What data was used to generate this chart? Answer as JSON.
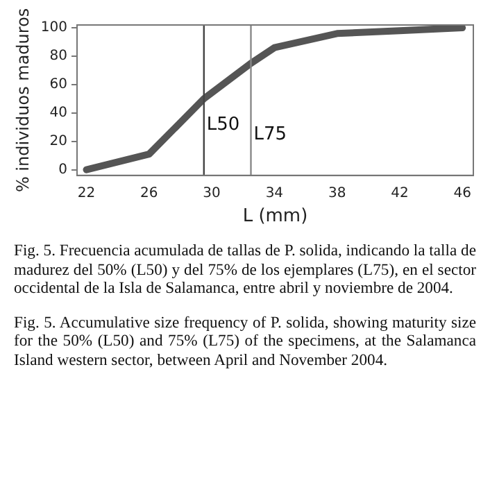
{
  "chart_data": {
    "type": "line",
    "xlabel": "L (mm)",
    "ylabel": "% individuos maduros",
    "x": [
      22,
      26,
      29.5,
      32.5,
      34,
      38,
      42,
      46
    ],
    "series": [
      {
        "color": "#555555",
        "values": [
          0,
          11,
          50,
          75,
          86,
          96,
          98,
          100
        ]
      }
    ],
    "xlim": [
      21.4,
      46.7
    ],
    "xticks": [
      22,
      26,
      30,
      34,
      38,
      42,
      46
    ],
    "ylim": [
      -4,
      102
    ],
    "yticks": [
      0,
      20,
      40,
      60,
      80,
      100
    ],
    "grid": false,
    "legend": false,
    "marker": "none",
    "line_style": "solid",
    "ref_lines": [
      {
        "axis": "x",
        "value": 29.5,
        "label": "L50",
        "color": "#444444"
      },
      {
        "axis": "x",
        "value": 32.5,
        "label": "L75",
        "color": "#888888"
      }
    ],
    "annotations": [
      "Fig. 5. Frecuencia acumulada de tallas de P. solida, indicando la talla de madurez del 50% (L50) y del 75% de los ejemplares (L75), en el sector occidental de la Isla de Salamanca, entre abril y noviembre de 2004.",
      "Fig. 5. Accumulative size frequency of P. solida, showing maturity size for the 50% (L50) and 75% (L75) of the specimens, at the Salamanca Island western sector, between April and November 2004."
    ]
  }
}
